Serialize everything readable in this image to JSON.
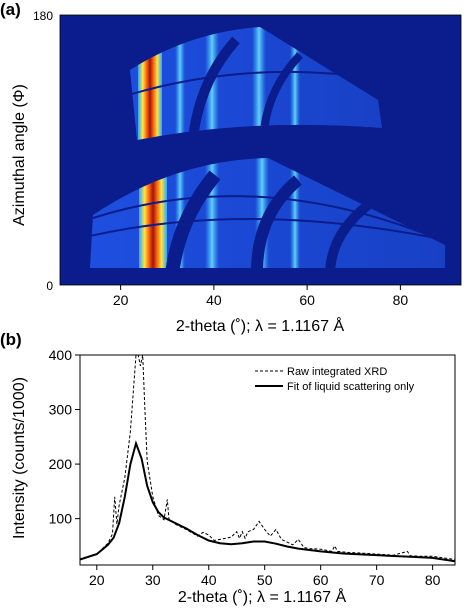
{
  "chart_data": [
    {
      "panel": "(a)",
      "type": "heatmap",
      "xlabel": "2-theta (˚); λ = 1.1167 Å",
      "ylabel": "Azimuthal angle (Φ)",
      "xlim": [
        7,
        93
      ],
      "ylim": [
        0,
        180
      ],
      "x_ticks": [
        20,
        40,
        60,
        80
      ],
      "y_ticks": [
        0,
        180
      ],
      "intense_bands_2theta": [
        27,
        33,
        39,
        44,
        49,
        52,
        56
      ],
      "colors": {
        "background": "#0b1d8c",
        "peak": "#a0140a",
        "ring": "#37b7ff"
      }
    },
    {
      "panel": "(b)",
      "type": "line",
      "xlabel": "2-theta (˚); λ = 1.1167 Å",
      "ylabel": "Intensity (counts/1000)",
      "xlim": [
        17,
        84
      ],
      "ylim": [
        15,
        400
      ],
      "x_ticks": [
        20,
        30,
        40,
        50,
        60,
        70,
        80
      ],
      "y_ticks": [
        100,
        200,
        300,
        400
      ],
      "legend_position": "top-right",
      "series": [
        {
          "name": "Raw integrated XRD",
          "style": "dashed",
          "x": [
            17,
            20,
            22,
            22.8,
            23.2,
            23.6,
            24,
            25,
            26,
            27,
            27.4,
            27.8,
            28.2,
            28.6,
            29,
            30,
            31,
            32,
            32.6,
            32.9,
            33.2,
            34,
            36,
            38,
            39,
            40,
            41,
            42,
            44,
            45,
            45.5,
            46,
            46.5,
            47,
            48,
            49,
            50,
            51,
            52,
            53,
            54,
            55,
            56,
            57,
            58,
            60,
            62,
            62.5,
            63,
            65,
            67,
            70,
            73,
            75.5,
            76,
            78,
            80,
            84
          ],
          "y": [
            25,
            35,
            55,
            72,
            140,
            90,
            125,
            175,
            260,
            400,
            400,
            380,
            400,
            300,
            205,
            140,
            106,
            98,
            135,
            98,
            96,
            90,
            80,
            68,
            75,
            70,
            60,
            62,
            66,
            76,
            64,
            76,
            64,
            76,
            80,
            95,
            80,
            68,
            80,
            62,
            57,
            52,
            62,
            47,
            45,
            44,
            40,
            50,
            40,
            38,
            37,
            35,
            33,
            40,
            32,
            31,
            31,
            25
          ]
        },
        {
          "name": "Fit of liquid scattering only",
          "style": "solid",
          "x": [
            17,
            20,
            22,
            23,
            24,
            25,
            26,
            27,
            28,
            29,
            30,
            31,
            32,
            34,
            36,
            38,
            40,
            42,
            44,
            46,
            48,
            50,
            52,
            54,
            56,
            60,
            64,
            68,
            72,
            76,
            80,
            84
          ],
          "y": [
            25,
            35,
            52,
            65,
            92,
            140,
            200,
            238,
            210,
            160,
            130,
            112,
            102,
            92,
            82,
            70,
            60,
            55,
            53,
            55,
            58,
            58,
            54,
            49,
            45,
            40,
            36,
            34,
            32,
            30,
            28,
            22
          ]
        }
      ]
    }
  ]
}
